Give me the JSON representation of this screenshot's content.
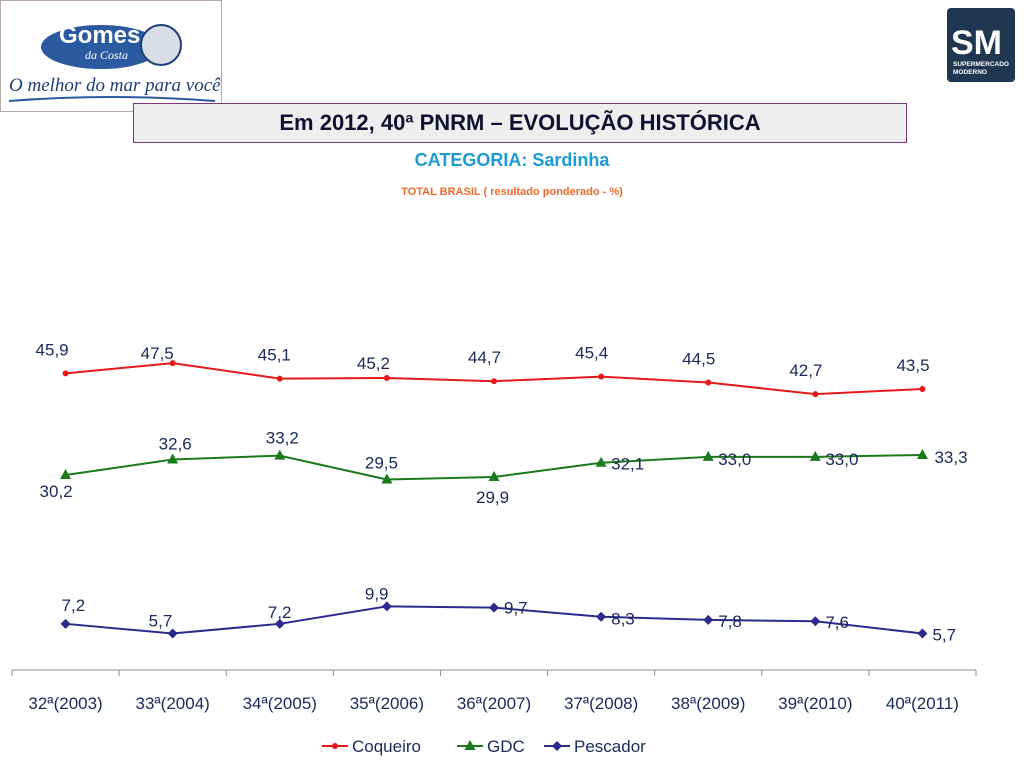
{
  "brand": {
    "left_logo_name": "Gomes",
    "left_logo_sub": "da Costa",
    "left_logo_tagline": "O melhor do mar para você.",
    "right_logo_initials": "SM",
    "right_logo_text_1": "SUPERMERCADO",
    "right_logo_text_2": "MODERNO"
  },
  "header": {
    "title": "Em 2012, 40ª PNRM – EVOLUÇÃO HISTÓRICA"
  },
  "colors": {
    "coqueiro": "#e41a1c",
    "gdc": "#1b7a1b",
    "pescador": "#2b2b8c",
    "label": "#1a2a5a"
  },
  "chart_data": {
    "type": "line",
    "title": "CATEGORIA: Sardinha",
    "subtitle": "TOTAL BRASIL ( resultado ponderado - %)",
    "categories": [
      "32ª(2003)",
      "33ª(2004)",
      "34ª(2005)",
      "35ª(2006)",
      "36ª(2007)",
      "37ª(2008)",
      "38ª(2009)",
      "39ª(2010)",
      "40ª(2011)"
    ],
    "series": [
      {
        "name": "Coqueiro",
        "values": [
          45.9,
          47.5,
          45.1,
          45.2,
          44.7,
          45.4,
          44.5,
          42.7,
          43.5
        ],
        "labels": [
          "45,9",
          "47,5",
          "45,1",
          "45,2",
          "44,7",
          "45,4",
          "44,5",
          "42,7",
          "43,5"
        ],
        "marker": "circle"
      },
      {
        "name": "GDC",
        "values": [
          30.2,
          32.6,
          33.2,
          29.5,
          29.9,
          32.1,
          33.0,
          33.0,
          33.3
        ],
        "labels": [
          "30,2",
          "32,6",
          "33,2",
          "29,5",
          "29,9",
          "32,1",
          "33,0",
          "33,0",
          "33,3"
        ],
        "marker": "triangle"
      },
      {
        "name": "Pescador",
        "values": [
          7.2,
          5.7,
          7.2,
          9.9,
          9.7,
          8.3,
          7.8,
          7.6,
          5.7
        ],
        "labels": [
          "7,2",
          "5,7",
          "7,2",
          "9,9",
          "9,7",
          "8,3",
          "7,8",
          "7,6",
          "5,7"
        ],
        "marker": "diamond"
      }
    ],
    "legend_position": "bottom",
    "grid": false
  }
}
